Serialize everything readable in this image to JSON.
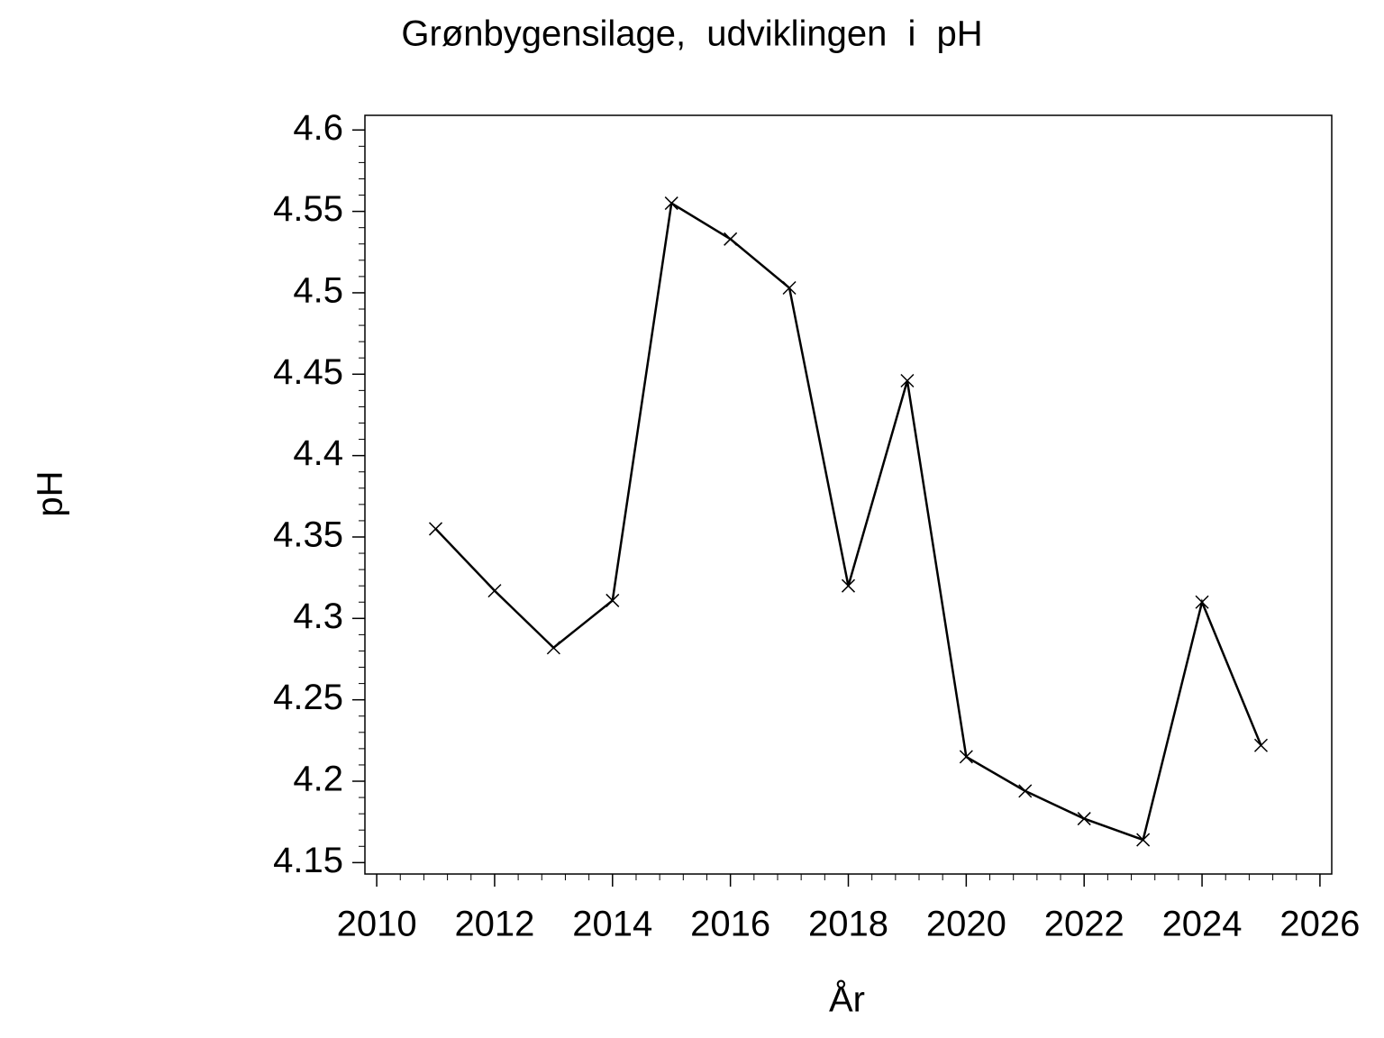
{
  "chart_data": {
    "type": "line",
    "title": "Grønbygensilage, udviklingen i pH",
    "x_label": "År",
    "y_label": "pH",
    "x": [
      2011,
      2012,
      2013,
      2014,
      2015,
      2016,
      2017,
      2018,
      2019,
      2020,
      2021,
      2022,
      2023,
      2024,
      2025
    ],
    "values": [
      4.355,
      4.317,
      4.282,
      4.311,
      4.555,
      4.533,
      4.503,
      4.32,
      4.446,
      4.215,
      4.194,
      4.177,
      4.164,
      4.31,
      4.222
    ],
    "color": "#000000",
    "marker": "x",
    "xlim": [
      2009.8,
      2026.2
    ],
    "xticks": [
      2010,
      2012,
      2014,
      2016,
      2018,
      2020,
      2022,
      2024,
      2026
    ],
    "ylim": [
      4.143,
      4.609
    ],
    "yticks": [
      4.15,
      4.2,
      4.25,
      4.3,
      4.35,
      4.4,
      4.45,
      4.5,
      4.55,
      4.6
    ],
    "grid": false
  }
}
